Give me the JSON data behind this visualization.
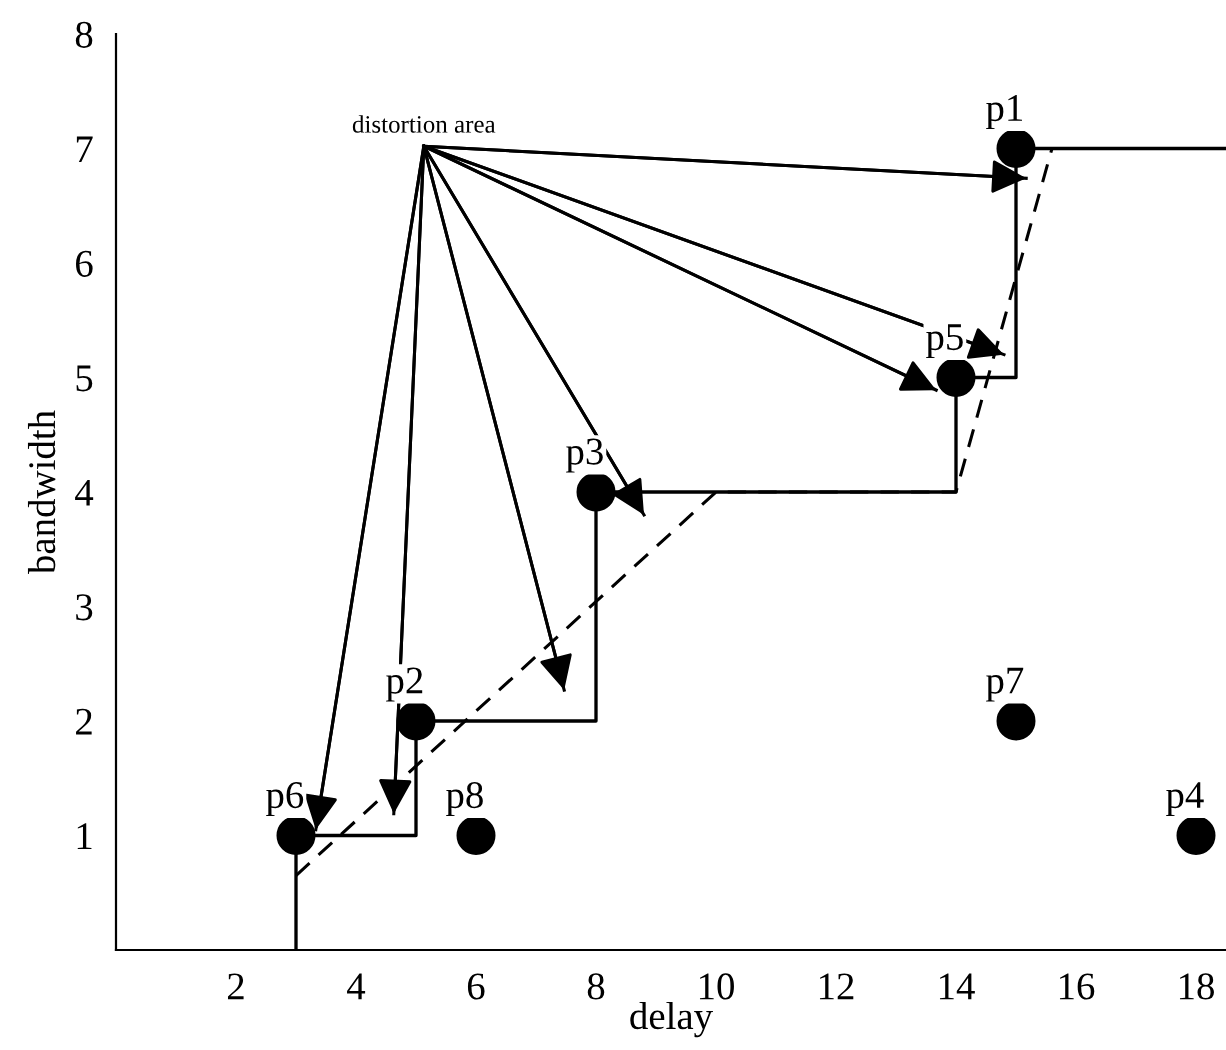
{
  "chart_data": {
    "type": "scatter",
    "xlabel": "delay",
    "ylabel": "bandwidth",
    "xlim": [
      0,
      18.5
    ],
    "ylim": [
      0,
      8
    ],
    "xticks": [
      2,
      4,
      6,
      8,
      10,
      12,
      14,
      16,
      18
    ],
    "yticks": [
      1,
      2,
      3,
      4,
      5,
      6,
      7,
      8
    ],
    "grid": false,
    "legend": false,
    "series": [
      {
        "type": "scatter",
        "color": "#000000",
        "marker": "circle",
        "x": [
          15,
          14,
          8,
          5,
          3,
          6,
          15,
          18
        ],
        "values": [
          7,
          5,
          4,
          2,
          1,
          1,
          2,
          1
        ]
      },
      {
        "type": "step",
        "color": "#000000",
        "marker": "none",
        "line_style": "solid",
        "x": [
          3,
          3,
          5,
          5,
          8,
          8,
          14,
          14,
          15,
          15,
          18.5
        ],
        "values": [
          0,
          1,
          1,
          2,
          2,
          4,
          4,
          5,
          5,
          7,
          7
        ]
      },
      {
        "type": "line",
        "color": "#000000",
        "marker": "none",
        "line_style": "dashed",
        "x": [
          3,
          10,
          14,
          15.6
        ],
        "values": [
          0.65,
          4,
          4,
          7
        ]
      },
      {
        "type": "line",
        "color": "#000000",
        "marker": "none",
        "line_style": "solid",
        "x": [
          5.13,
          15.17
        ],
        "values": [
          7.02,
          6.74
        ]
      },
      {
        "type": "line",
        "color": "#000000",
        "marker": "none",
        "line_style": "solid",
        "x": [
          5.13,
          14.8
        ],
        "values": [
          7.02,
          5.2
        ]
      },
      {
        "type": "line",
        "color": "#000000",
        "marker": "none",
        "line_style": "solid",
        "x": [
          5.13,
          13.67
        ],
        "values": [
          7.02,
          4.89
        ]
      },
      {
        "type": "line",
        "color": "#000000",
        "marker": "none",
        "line_style": "solid",
        "x": [
          5.13,
          8.8
        ],
        "values": [
          7.02,
          3.8
        ]
      },
      {
        "type": "line",
        "color": "#000000",
        "marker": "none",
        "line_style": "solid",
        "x": [
          5.13,
          7.47
        ],
        "values": [
          7.02,
          2.27
        ]
      },
      {
        "type": "line",
        "color": "#000000",
        "marker": "none",
        "line_style": "solid",
        "x": [
          5.13,
          4.63
        ],
        "values": [
          7.02,
          1.19
        ]
      },
      {
        "type": "line",
        "color": "#000000",
        "marker": "none",
        "line_style": "solid",
        "x": [
          5.13,
          3.33
        ],
        "values": [
          7.02,
          1.05
        ]
      }
    ],
    "annotations": [
      {
        "text": "distortion area",
        "x": 5.13,
        "y": 7.02
      },
      {
        "text": "p1",
        "x": 15,
        "y": 7
      },
      {
        "text": "p5",
        "x": 14,
        "y": 5
      },
      {
        "text": "p3",
        "x": 8,
        "y": 4
      },
      {
        "text": "p2",
        "x": 5,
        "y": 2
      },
      {
        "text": "p6",
        "x": 3,
        "y": 1
      },
      {
        "text": "p8",
        "x": 6,
        "y": 1
      },
      {
        "text": "p7",
        "x": 15,
        "y": 2
      },
      {
        "text": "p4",
        "x": 18,
        "y": 1
      }
    ]
  }
}
